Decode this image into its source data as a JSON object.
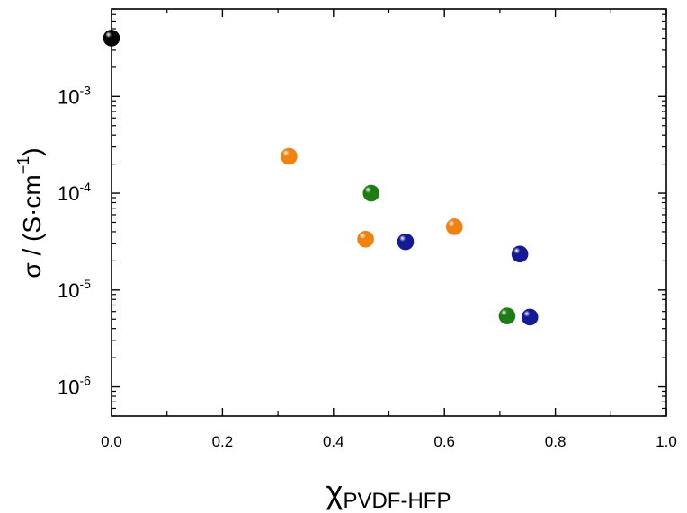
{
  "chart_data": {
    "type": "scatter",
    "title": "",
    "xlabel": {
      "main": "χ",
      "sub": "PVDF-HFP"
    },
    "ylabel": {
      "main": "σ / (S·cm",
      "sup": "−1",
      "close": ")"
    },
    "xlim": [
      0,
      1.0
    ],
    "ylim": [
      5e-07,
      0.008
    ],
    "yscale": "log",
    "xticks": [
      {
        "value": 0.0,
        "label": "0.0"
      },
      {
        "value": 0.2,
        "label": "0.2"
      },
      {
        "value": 0.4,
        "label": "0.4"
      },
      {
        "value": 0.6,
        "label": "0.6"
      },
      {
        "value": 0.8,
        "label": "0.8"
      },
      {
        "value": 1.0,
        "label": "1.0"
      }
    ],
    "yticks": [
      {
        "value": 1e-06,
        "base": "10",
        "exp": "-6"
      },
      {
        "value": 1e-05,
        "base": "10",
        "exp": "-5"
      },
      {
        "value": 0.0001,
        "base": "10",
        "exp": "-4"
      },
      {
        "value": 0.001,
        "base": "10",
        "exp": "-3"
      }
    ],
    "grid": false,
    "series": [
      {
        "color": "#000000",
        "points": [
          {
            "x": 0.0,
            "y": 0.004
          }
        ]
      },
      {
        "color": "#f0820f",
        "points": [
          {
            "x": 0.32,
            "y": 0.00024
          },
          {
            "x": 0.458,
            "y": 3.35e-05
          },
          {
            "x": 0.618,
            "y": 4.5e-05
          }
        ]
      },
      {
        "color": "#1e7d12",
        "points": [
          {
            "x": 0.468,
            "y": 0.0001
          },
          {
            "x": 0.713,
            "y": 5.4e-06
          }
        ]
      },
      {
        "color": "#141a96",
        "points": [
          {
            "x": 0.53,
            "y": 3.15e-05
          },
          {
            "x": 0.736,
            "y": 2.35e-05
          },
          {
            "x": 0.754,
            "y": 5.25e-06
          }
        ]
      }
    ]
  }
}
